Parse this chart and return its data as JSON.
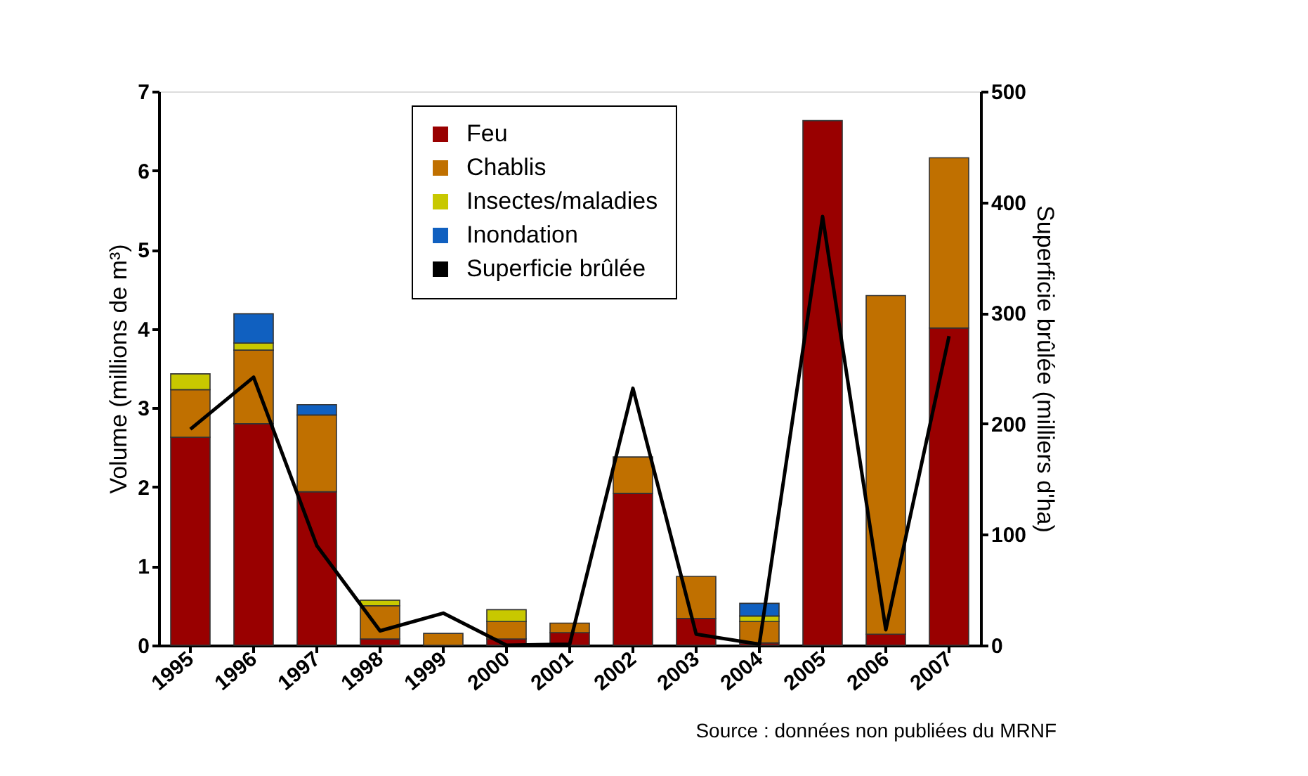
{
  "chart_data": {
    "type": "bar",
    "stacked": true,
    "ylabel": "Volume (millions de m³)",
    "y2label": "Superficie brûlée (milliers d'ha)",
    "categories": [
      "1995",
      "1996",
      "1997",
      "1998",
      "1999",
      "2000",
      "2001",
      "2002",
      "2003",
      "2004",
      "2005",
      "2006",
      "2007"
    ],
    "series": [
      {
        "name": "Feu",
        "color": "#990000",
        "values": [
          2.63,
          2.8,
          1.94,
          0.08,
          null,
          0.08,
          0.16,
          1.92,
          0.34,
          0.03,
          6.63,
          0.14,
          4.01
        ]
      },
      {
        "name": "Chablis",
        "color": "#c07000",
        "values": [
          0.6,
          0.93,
          0.97,
          0.42,
          0.15,
          0.22,
          0.12,
          0.46,
          0.53,
          0.27,
          null,
          4.28,
          2.15
        ]
      },
      {
        "name": "Insectes/maladies",
        "color": "#c8c800",
        "values": [
          0.2,
          0.09,
          null,
          0.07,
          null,
          0.15,
          null,
          null,
          null,
          0.07,
          null,
          null,
          null
        ]
      },
      {
        "name": "Inondation",
        "color": "#1060c0",
        "values": [
          null,
          0.37,
          0.13,
          null,
          null,
          null,
          null,
          null,
          null,
          0.16,
          null,
          null,
          null
        ]
      },
      {
        "name": "Superficie brûlée",
        "color": "#000000",
        "type": "line",
        "axis": "y2",
        "values": [
          195,
          242,
          90,
          13,
          29,
          0,
          1,
          232,
          10,
          1,
          387,
          14,
          279
        ]
      }
    ],
    "ylim": [
      0,
      7
    ],
    "yticks": [
      0,
      1,
      2,
      3,
      4,
      5,
      6,
      7
    ],
    "y2lim": [
      0,
      500
    ],
    "y2ticks": [
      0,
      100,
      200,
      300,
      400,
      500
    ],
    "grid": false,
    "legend": "top",
    "marker": "none",
    "line_style": "solid",
    "annotations": [
      "Source : données non publiées du MRNF"
    ]
  }
}
